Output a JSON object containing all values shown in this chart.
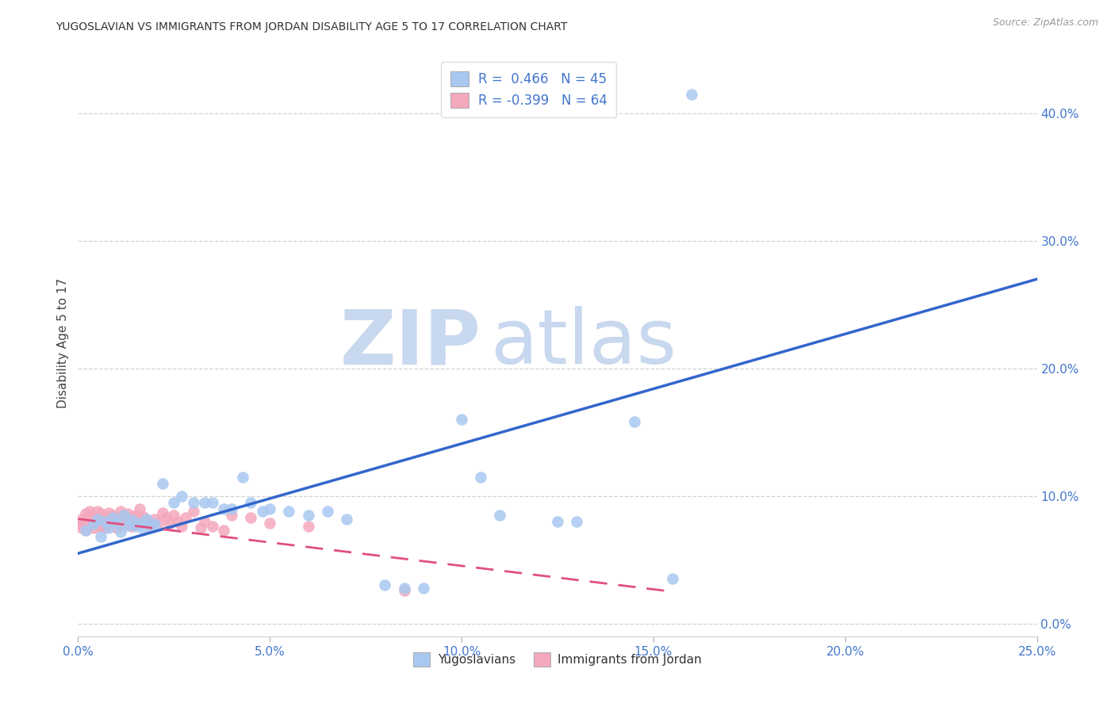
{
  "title": "YUGOSLAVIAN VS IMMIGRANTS FROM JORDAN DISABILITY AGE 5 TO 17 CORRELATION CHART",
  "source": "Source: ZipAtlas.com",
  "ylabel": "Disability Age 5 to 17",
  "xlim": [
    0.0,
    0.25
  ],
  "ylim": [
    -0.01,
    0.45
  ],
  "xticks": [
    0.0,
    0.05,
    0.1,
    0.15,
    0.2,
    0.25
  ],
  "yticks": [
    0.0,
    0.1,
    0.2,
    0.3,
    0.4
  ],
  "xtick_labels": [
    "0.0%",
    "5.0%",
    "10.0%",
    "15.0%",
    "20.0%",
    "25.0%"
  ],
  "ytick_labels": [
    "0.0%",
    "10.0%",
    "20.0%",
    "30.0%",
    "40.0%"
  ],
  "blue_R": "0.466",
  "blue_N": "45",
  "pink_R": "-0.399",
  "pink_N": "64",
  "blue_scatter_color": "#A8C8F0",
  "pink_scatter_color": "#F4A8BC",
  "blue_line_color": "#3366CC",
  "pink_line_color": "#E05080",
  "tick_label_color": "#4477CC",
  "watermark_color": "#C8D8EE",
  "background_color": "#FFFFFF",
  "grid_color": "#CCCCCC",
  "blue_scatter": [
    [
      0.002,
      0.073
    ],
    [
      0.004,
      0.078
    ],
    [
      0.005,
      0.082
    ],
    [
      0.006,
      0.068
    ],
    [
      0.007,
      0.08
    ],
    [
      0.008,
      0.075
    ],
    [
      0.009,
      0.083
    ],
    [
      0.01,
      0.079
    ],
    [
      0.011,
      0.072
    ],
    [
      0.012,
      0.085
    ],
    [
      0.013,
      0.077
    ],
    [
      0.014,
      0.081
    ],
    [
      0.015,
      0.076
    ],
    [
      0.016,
      0.079
    ],
    [
      0.017,
      0.074
    ],
    [
      0.018,
      0.082
    ],
    [
      0.019,
      0.077
    ],
    [
      0.02,
      0.078
    ],
    [
      0.022,
      0.11
    ],
    [
      0.025,
      0.095
    ],
    [
      0.027,
      0.1
    ],
    [
      0.03,
      0.095
    ],
    [
      0.033,
      0.095
    ],
    [
      0.035,
      0.095
    ],
    [
      0.038,
      0.09
    ],
    [
      0.04,
      0.09
    ],
    [
      0.043,
      0.115
    ],
    [
      0.045,
      0.095
    ],
    [
      0.048,
      0.088
    ],
    [
      0.05,
      0.09
    ],
    [
      0.055,
      0.088
    ],
    [
      0.06,
      0.085
    ],
    [
      0.065,
      0.088
    ],
    [
      0.07,
      0.082
    ],
    [
      0.08,
      0.03
    ],
    [
      0.085,
      0.028
    ],
    [
      0.09,
      0.028
    ],
    [
      0.1,
      0.16
    ],
    [
      0.105,
      0.115
    ],
    [
      0.11,
      0.085
    ],
    [
      0.125,
      0.08
    ],
    [
      0.13,
      0.08
    ],
    [
      0.145,
      0.158
    ],
    [
      0.155,
      0.035
    ],
    [
      0.16,
      0.415
    ]
  ],
  "pink_scatter": [
    [
      0.0,
      0.078
    ],
    [
      0.001,
      0.082
    ],
    [
      0.001,
      0.075
    ],
    [
      0.002,
      0.086
    ],
    [
      0.002,
      0.079
    ],
    [
      0.002,
      0.073
    ],
    [
      0.003,
      0.083
    ],
    [
      0.003,
      0.078
    ],
    [
      0.003,
      0.088
    ],
    [
      0.004,
      0.081
    ],
    [
      0.004,
      0.075
    ],
    [
      0.004,
      0.085
    ],
    [
      0.005,
      0.079
    ],
    [
      0.005,
      0.083
    ],
    [
      0.005,
      0.077
    ],
    [
      0.005,
      0.088
    ],
    [
      0.006,
      0.082
    ],
    [
      0.006,
      0.076
    ],
    [
      0.006,
      0.086
    ],
    [
      0.006,
      0.08
    ],
    [
      0.007,
      0.075
    ],
    [
      0.007,
      0.083
    ],
    [
      0.007,
      0.079
    ],
    [
      0.008,
      0.087
    ],
    [
      0.008,
      0.082
    ],
    [
      0.008,
      0.077
    ],
    [
      0.009,
      0.085
    ],
    [
      0.009,
      0.08
    ],
    [
      0.01,
      0.075
    ],
    [
      0.01,
      0.083
    ],
    [
      0.011,
      0.079
    ],
    [
      0.011,
      0.088
    ],
    [
      0.012,
      0.084
    ],
    [
      0.012,
      0.078
    ],
    [
      0.013,
      0.086
    ],
    [
      0.013,
      0.081
    ],
    [
      0.014,
      0.076
    ],
    [
      0.014,
      0.083
    ],
    [
      0.015,
      0.08
    ],
    [
      0.015,
      0.085
    ],
    [
      0.016,
      0.09
    ],
    [
      0.016,
      0.078
    ],
    [
      0.017,
      0.084
    ],
    [
      0.018,
      0.08
    ],
    [
      0.019,
      0.076
    ],
    [
      0.02,
      0.082
    ],
    [
      0.021,
      0.079
    ],
    [
      0.022,
      0.087
    ],
    [
      0.023,
      0.083
    ],
    [
      0.024,
      0.078
    ],
    [
      0.025,
      0.085
    ],
    [
      0.026,
      0.08
    ],
    [
      0.027,
      0.076
    ],
    [
      0.028,
      0.083
    ],
    [
      0.03,
      0.088
    ],
    [
      0.032,
      0.075
    ],
    [
      0.033,
      0.08
    ],
    [
      0.035,
      0.076
    ],
    [
      0.038,
      0.073
    ],
    [
      0.04,
      0.085
    ],
    [
      0.045,
      0.083
    ],
    [
      0.05,
      0.079
    ],
    [
      0.06,
      0.076
    ],
    [
      0.085,
      0.026
    ]
  ],
  "blue_trend_x": [
    0.0,
    0.25
  ],
  "blue_trend_y": [
    0.055,
    0.27
  ],
  "pink_trend_x": [
    0.0,
    0.155
  ],
  "pink_trend_y": [
    0.082,
    0.025
  ]
}
